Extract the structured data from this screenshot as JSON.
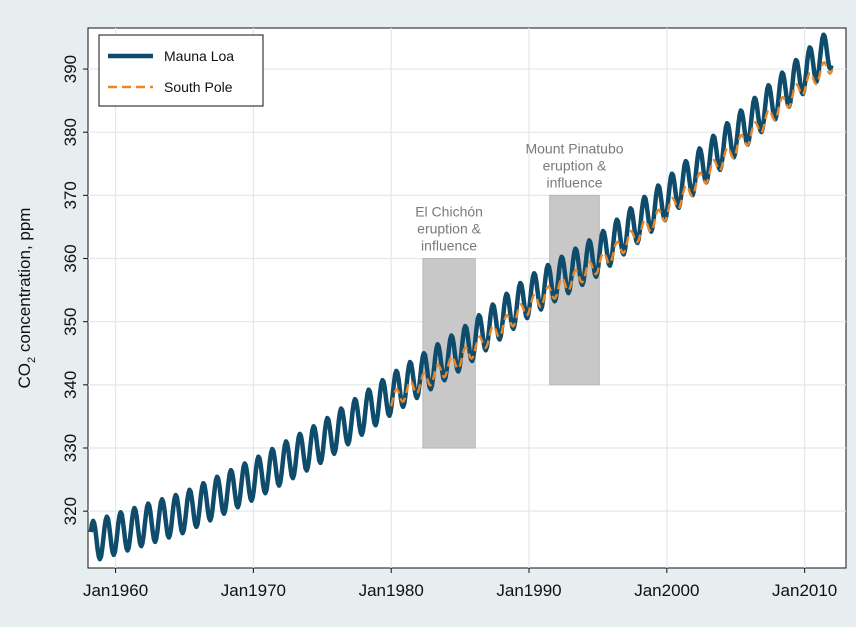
{
  "chart_data": {
    "type": "line",
    "ylabel": {
      "prefix": "CO",
      "subscript": "2",
      "suffix": " concentration, ppm"
    },
    "xlabel": "",
    "title": "",
    "xlim": [
      1958.0,
      2013.0
    ],
    "ylim": [
      311.0,
      396.5
    ],
    "x_ticks": [
      {
        "value": 1960,
        "label": "Jan1960"
      },
      {
        "value": 1970,
        "label": "Jan1970"
      },
      {
        "value": 1980,
        "label": "Jan1980"
      },
      {
        "value": 1990,
        "label": "Jan1990"
      },
      {
        "value": 2000,
        "label": "Jan2000"
      },
      {
        "value": 2010,
        "label": "Jan2010"
      }
    ],
    "y_ticks": [
      {
        "value": 320,
        "label": "320"
      },
      {
        "value": 330,
        "label": "330"
      },
      {
        "value": 340,
        "label": "340"
      },
      {
        "value": 350,
        "label": "350"
      },
      {
        "value": 360,
        "label": "360"
      },
      {
        "value": 370,
        "label": "370"
      },
      {
        "value": 380,
        "label": "380"
      },
      {
        "value": 390,
        "label": "390"
      }
    ],
    "grid": true,
    "legend_position": "top-left",
    "series": [
      {
        "name": "Mauna Loa",
        "style": "solid",
        "color": "#0f4c6c",
        "x_range": [
          1958.2,
          2012.0
        ],
        "trend": [
          [
            1958,
            315.0
          ],
          [
            1965,
            319.8
          ],
          [
            1970,
            325.0
          ],
          [
            1975,
            331.0
          ],
          [
            1980,
            338.5
          ],
          [
            1985,
            345.5
          ],
          [
            1990,
            354.0
          ],
          [
            1995,
            360.5
          ],
          [
            2000,
            369.5
          ],
          [
            2005,
            379.5
          ],
          [
            2010,
            389.5
          ],
          [
            2012,
            393.5
          ]
        ],
        "seasonal_amplitude_ppm": 3.2
      },
      {
        "name": "South Pole",
        "style": "dashed",
        "color": "#e8862a",
        "x_range": [
          1980.0,
          2012.0
        ],
        "trend": [
          [
            1980,
            337.5
          ],
          [
            1985,
            344.0
          ],
          [
            1990,
            352.5
          ],
          [
            1995,
            359.0
          ],
          [
            2000,
            367.5
          ],
          [
            2005,
            377.5
          ],
          [
            2010,
            387.5
          ],
          [
            2012,
            390.8
          ]
        ],
        "seasonal_amplitude_ppm": 1.3
      }
    ],
    "annotations": [
      {
        "lines": [
          "El Chichón",
          "eruption &",
          "influence"
        ],
        "x_range": [
          1982.3,
          1986.1
        ],
        "y_range": [
          330,
          360
        ],
        "color": "#c8c8c8"
      },
      {
        "lines": [
          "Mount Pinatubo",
          "eruption &",
          "influence"
        ],
        "x_range": [
          1991.5,
          1995.1
        ],
        "y_range": [
          340,
          370
        ],
        "color": "#c8c8c8"
      }
    ]
  },
  "colors": {
    "background": "#e6eef0",
    "plot_background": "#ffffff",
    "grid": "#e3e8ea"
  }
}
